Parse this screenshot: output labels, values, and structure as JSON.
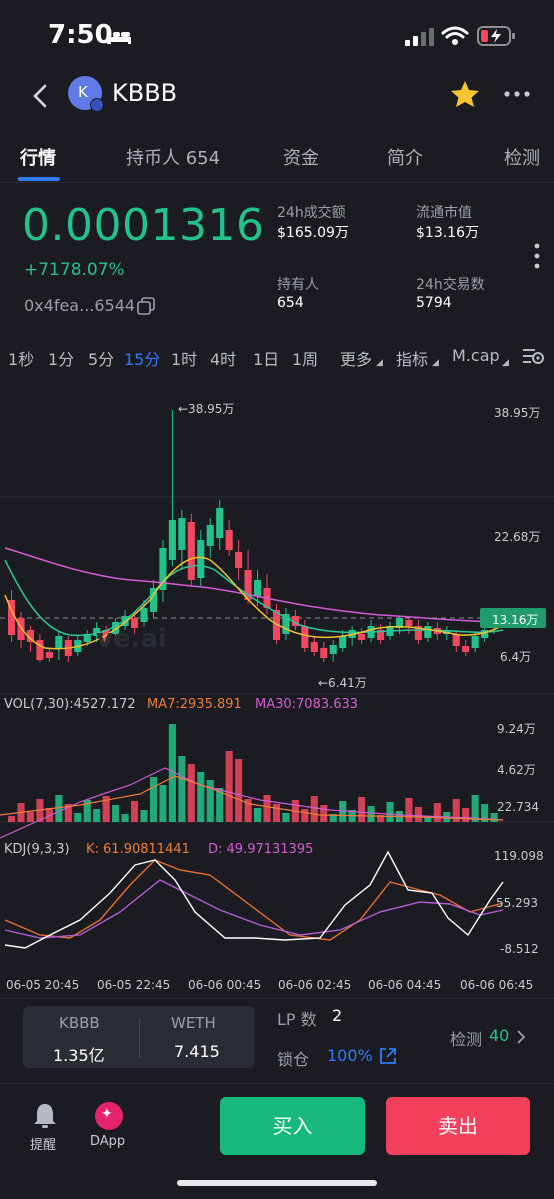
{
  "status": {
    "time": "7:50"
  },
  "header": {
    "token_name": "KBBB",
    "avatar_letter": "K"
  },
  "tabs": [
    "行情",
    "持币人 654",
    "资金",
    "简介",
    "检测"
  ],
  "price": {
    "value": "0.0001316",
    "change": "+7178.07%",
    "address": "0x4fea...6544"
  },
  "stats": {
    "vol24_label": "24h成交额",
    "vol24_value": "$165.09万",
    "mcap_label": "流通市值",
    "mcap_value": "$13.16万",
    "holders_label": "持有人",
    "holders_value": "654",
    "tx24_label": "24h交易数",
    "tx24_value": "5794"
  },
  "intervals": [
    "1秒",
    "1分",
    "5分",
    "15分",
    "1时",
    "4时",
    "1日",
    "1周",
    "更多",
    "指标",
    "M.cap"
  ],
  "active_interval": "15分",
  "chart": {
    "price_labels": [
      "38.95万",
      "22.68万",
      "13.16万",
      "6.4万"
    ],
    "high_marker": "←38.95万",
    "low_marker": "←6.41万",
    "watermark": "ve.ai",
    "vol_header": "VOL(7,30):4527.172",
    "vol_ma7": "MA7:2935.891",
    "vol_ma30": "MA30:7083.633",
    "vol_labels": [
      "9.24万",
      "4.62万",
      "22.734"
    ],
    "kdj_header": "KDJ(9,3,3)",
    "kdj_k": "K: 61.90811441",
    "kdj_d": "D: 49.97131395",
    "kdj_labels": [
      "119.098",
      "55.293",
      "-8.512"
    ],
    "time_labels": [
      "06-05 20:45",
      "06-05 22:45",
      "06-06 00:45",
      "06-06 02:45",
      "06-06 04:45",
      "06-06 06:45"
    ]
  },
  "pool": {
    "token_a": "KBBB",
    "amount_a": "1.35亿",
    "token_b": "WETH",
    "amount_b": "7.415",
    "lp_label": "LP 数",
    "lp_value": "2",
    "lock_label": "锁仓",
    "lock_value": "100%",
    "check_label": "检测",
    "check_value": "40"
  },
  "bottom": {
    "alert_label": "提醒",
    "dapp_label": "DApp",
    "buy_label": "买入",
    "sell_label": "卖出"
  },
  "colors": {
    "up": "#22c28a",
    "down": "#f2475f",
    "accent": "#2f7bf6",
    "buy": "#18b97c",
    "sell": "#f4405b"
  }
}
